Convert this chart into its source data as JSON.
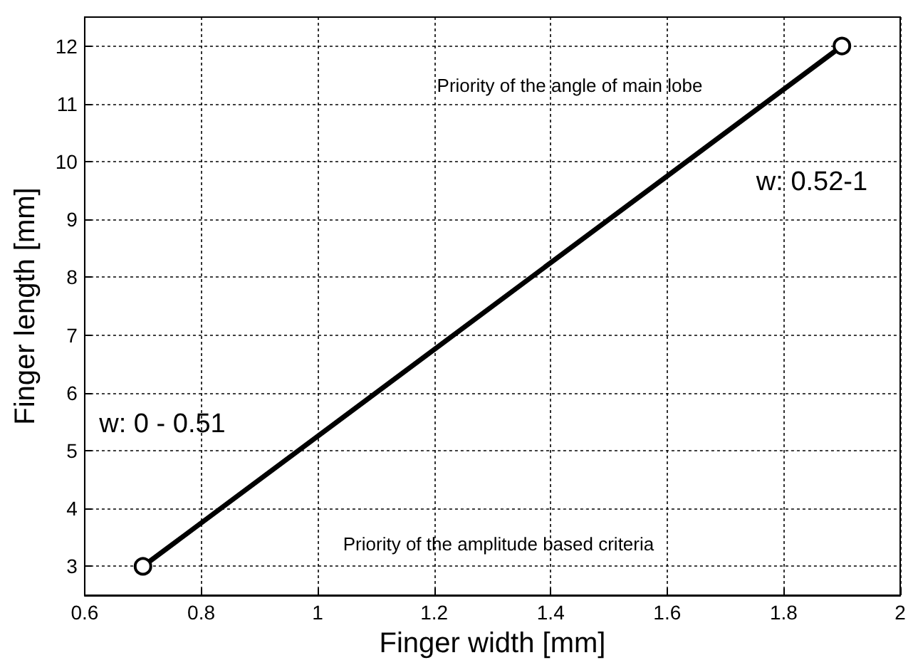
{
  "chart_data": {
    "type": "line",
    "xlabel": "Finger width [mm]",
    "ylabel": "Finger length [mm]",
    "x": [
      0.7,
      1.9
    ],
    "series": [
      {
        "color": "#000000",
        "values": [
          3,
          12
        ]
      }
    ],
    "marker": "circle",
    "line_style": "solid",
    "grid": true,
    "xlim": [
      0.6,
      2
    ],
    "xticks": [
      0.6,
      0.8,
      1,
      1.2,
      1.4,
      1.6,
      1.8,
      2
    ],
    "ylim": [
      2.5,
      12.5
    ],
    "yticks": [
      3,
      4,
      5,
      6,
      7,
      8,
      9,
      10,
      11,
      12
    ],
    "annotations": [
      "Priority of the angle of main lobe",
      "w: 0.52-1",
      "w: 0 - 0.51",
      "Priority of the amplitude based criteria"
    ]
  }
}
